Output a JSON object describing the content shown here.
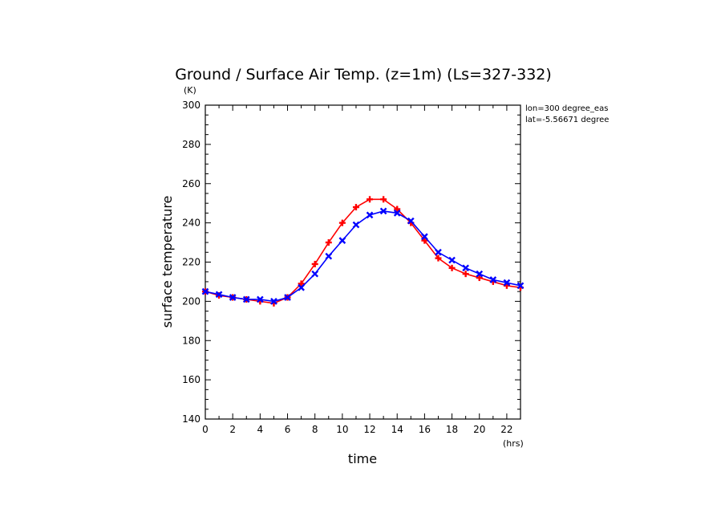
{
  "chart_data": {
    "type": "line",
    "title": "Ground / Surface Air Temp. (z=1m) (Ls=327-332)",
    "xlabel": "time",
    "ylabel": "surface temperature",
    "x_unit": "(hrs)",
    "y_unit": "(K)",
    "xlim": [
      0,
      23
    ],
    "ylim": [
      140,
      300
    ],
    "x_ticks": [
      0,
      2,
      4,
      6,
      8,
      10,
      12,
      14,
      16,
      18,
      20,
      22
    ],
    "y_ticks": [
      140,
      160,
      180,
      200,
      220,
      240,
      260,
      280,
      300
    ],
    "annotations": [
      "lon=300 degree_eas",
      "lat=-5.56671 degree"
    ],
    "x": [
      0,
      1,
      2,
      3,
      4,
      5,
      6,
      7,
      8,
      9,
      10,
      11,
      12,
      13,
      14,
      15,
      16,
      17,
      18,
      19,
      20,
      21,
      22,
      23
    ],
    "series": [
      {
        "color": "#ff0000",
        "marker": "plus",
        "values": [
          205,
          203,
          202,
          201,
          200,
          199,
          202,
          209,
          219,
          230,
          240,
          248,
          252,
          252,
          247,
          240,
          231,
          222,
          217,
          214,
          212,
          210,
          208,
          207
        ]
      },
      {
        "color": "#0000ff",
        "marker": "x",
        "values": [
          205,
          203.5,
          202,
          201,
          201,
          200,
          202,
          207,
          214,
          223,
          231,
          239,
          244,
          246,
          245,
          241,
          233,
          225,
          221,
          217,
          214,
          211,
          209.5,
          208
        ]
      }
    ]
  }
}
